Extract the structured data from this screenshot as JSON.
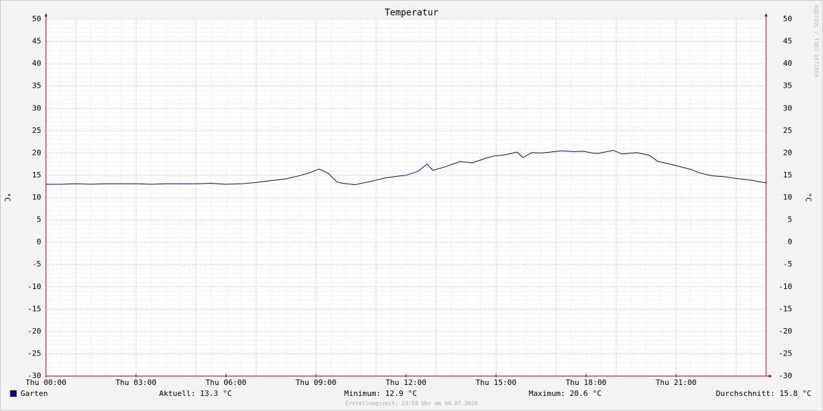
{
  "chart_data": {
    "type": "line",
    "title": "Temperatur",
    "y_label": "°C",
    "y2_label": "°C",
    "x": [
      0,
      0.5,
      1,
      1.5,
      2,
      2.5,
      3,
      3.5,
      4,
      4.5,
      5,
      5.5,
      6,
      6.5,
      7,
      7.5,
      8,
      8.5,
      8.8,
      9.1,
      9.4,
      9.7,
      9.9,
      10.3,
      10.8,
      11.3,
      11.7,
      12,
      12.4,
      12.7,
      12.9,
      13.3,
      13.8,
      14.2,
      14.6,
      14.9,
      15.3,
      15.7,
      15.9,
      16.2,
      16.5,
      16.8,
      17.2,
      17.6,
      17.9,
      18.2,
      18.4,
      18.7,
      18.9,
      19.2,
      19.7,
      20.1,
      20.4,
      20.8,
      21.1,
      21.5,
      21.8,
      22.2,
      22.6,
      22.9,
      23.5,
      24
    ],
    "series": [
      {
        "name": "Garten",
        "color": "#00008b",
        "values": [
          13.0,
          13.0,
          13.1,
          13.0,
          13.1,
          13.1,
          13.1,
          13.0,
          13.1,
          13.1,
          13.1,
          13.2,
          13.0,
          13.1,
          13.4,
          13.8,
          14.2,
          15.0,
          15.6,
          16.4,
          15.5,
          13.5,
          13.2,
          12.9,
          13.6,
          14.4,
          14.8,
          15.0,
          15.9,
          17.5,
          16.1,
          16.9,
          18.1,
          17.8,
          18.7,
          19.3,
          19.6,
          20.2,
          19.0,
          20.1,
          20.0,
          20.2,
          20.5,
          20.3,
          20.4,
          20.0,
          19.9,
          20.3,
          20.6,
          19.8,
          20.1,
          19.5,
          18.1,
          17.5,
          17.0,
          16.3,
          15.5,
          14.9,
          14.7,
          14.4,
          13.9,
          13.3
        ]
      }
    ],
    "xlim": [
      0,
      24
    ],
    "xticks": [
      {
        "value": 0,
        "label": "Thu 00:00"
      },
      {
        "value": 3,
        "label": "Thu 03:00"
      },
      {
        "value": 6,
        "label": "Thu 06:00"
      },
      {
        "value": 9,
        "label": "Thu 09:00"
      },
      {
        "value": 12,
        "label": "Thu 12:00"
      },
      {
        "value": 15,
        "label": "Thu 15:00"
      },
      {
        "value": 18,
        "label": "Thu 18:00"
      },
      {
        "value": 21,
        "label": "Thu 21:00"
      }
    ],
    "ylim": [
      -30,
      50
    ],
    "yticks": [
      50,
      45,
      40,
      35,
      30,
      25,
      20,
      15,
      10,
      5,
      0,
      -5,
      -10,
      -15,
      -20,
      -25,
      -30
    ],
    "grid": true,
    "legend_stats": [
      "Aktuell: 13.3 °C",
      "Minimum: 12.9 °C",
      "Maximum: 20.6 °C",
      "Durchschnitt: 15.8 °C"
    ],
    "footer": "Erstellungszeit: 23:58 Uhr am 04.07.2024",
    "watermark": "RRDTOOL / TOBI OETIKER"
  }
}
